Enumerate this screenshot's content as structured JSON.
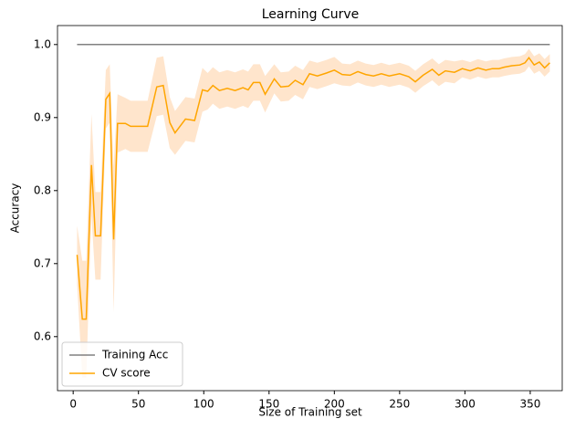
{
  "chart_data": {
    "type": "line",
    "title": "Learning Curve",
    "xlabel": "Size of Training set",
    "ylabel": "Accuracy",
    "xlim": [
      -12,
      374.5
    ],
    "ylim": [
      0.526,
      1.026
    ],
    "xticks": [
      0,
      50,
      100,
      150,
      200,
      250,
      300,
      350
    ],
    "yticks": [
      0.6,
      0.7,
      0.8,
      0.9,
      {
        "value": 1.0,
        "label": "1.0"
      }
    ],
    "legend": "lower left",
    "series": [
      {
        "name": "Training Acc",
        "color": "#808080",
        "x": [
          3,
          365
        ],
        "values": [
          1.0,
          1.0
        ]
      },
      {
        "name": "CV score",
        "color": "#ffa500",
        "band_color": "#ffe5cc",
        "x": [
          3,
          7,
          10,
          14,
          17,
          21,
          25,
          28,
          31,
          34,
          40,
          44,
          57,
          64,
          69,
          74,
          78,
          86,
          93,
          99,
          103,
          107,
          112,
          118,
          124,
          130,
          134,
          138,
          143,
          147,
          154,
          159,
          165,
          170,
          176,
          181,
          187,
          194,
          200,
          206,
          212,
          218,
          224,
          230,
          236,
          242,
          250,
          257,
          262,
          268,
          275,
          280,
          285,
          292,
          298,
          304,
          310,
          316,
          321,
          326,
          330,
          336,
          342,
          346,
          349,
          353,
          357,
          361,
          365
        ],
        "values": [
          0.712,
          0.624,
          0.624,
          0.835,
          0.738,
          0.738,
          0.925,
          0.933,
          0.733,
          0.892,
          0.892,
          0.888,
          0.888,
          0.942,
          0.944,
          0.893,
          0.879,
          0.898,
          0.896,
          0.938,
          0.936,
          0.944,
          0.937,
          0.94,
          0.937,
          0.941,
          0.938,
          0.948,
          0.948,
          0.932,
          0.953,
          0.942,
          0.943,
          0.951,
          0.945,
          0.96,
          0.957,
          0.961,
          0.965,
          0.959,
          0.958,
          0.963,
          0.959,
          0.957,
          0.96,
          0.957,
          0.96,
          0.956,
          0.949,
          0.958,
          0.966,
          0.958,
          0.964,
          0.962,
          0.967,
          0.964,
          0.968,
          0.965,
          0.967,
          0.967,
          0.969,
          0.971,
          0.972,
          0.975,
          0.982,
          0.972,
          0.976,
          0.968,
          0.975
        ],
        "std": [
          0.04,
          0.08,
          0.08,
          0.07,
          0.06,
          0.06,
          0.04,
          0.04,
          0.1,
          0.04,
          0.035,
          0.035,
          0.035,
          0.04,
          0.04,
          0.035,
          0.03,
          0.03,
          0.03,
          0.03,
          0.025,
          0.025,
          0.025,
          0.025,
          0.025,
          0.025,
          0.025,
          0.025,
          0.025,
          0.025,
          0.02,
          0.02,
          0.02,
          0.02,
          0.02,
          0.018,
          0.018,
          0.018,
          0.018,
          0.015,
          0.015,
          0.015,
          0.015,
          0.015,
          0.015,
          0.015,
          0.015,
          0.015,
          0.015,
          0.015,
          0.015,
          0.015,
          0.015,
          0.015,
          0.012,
          0.012,
          0.012,
          0.012,
          0.012,
          0.012,
          0.012,
          0.012,
          0.012,
          0.012,
          0.012,
          0.012,
          0.012,
          0.012,
          0.012
        ]
      }
    ]
  }
}
